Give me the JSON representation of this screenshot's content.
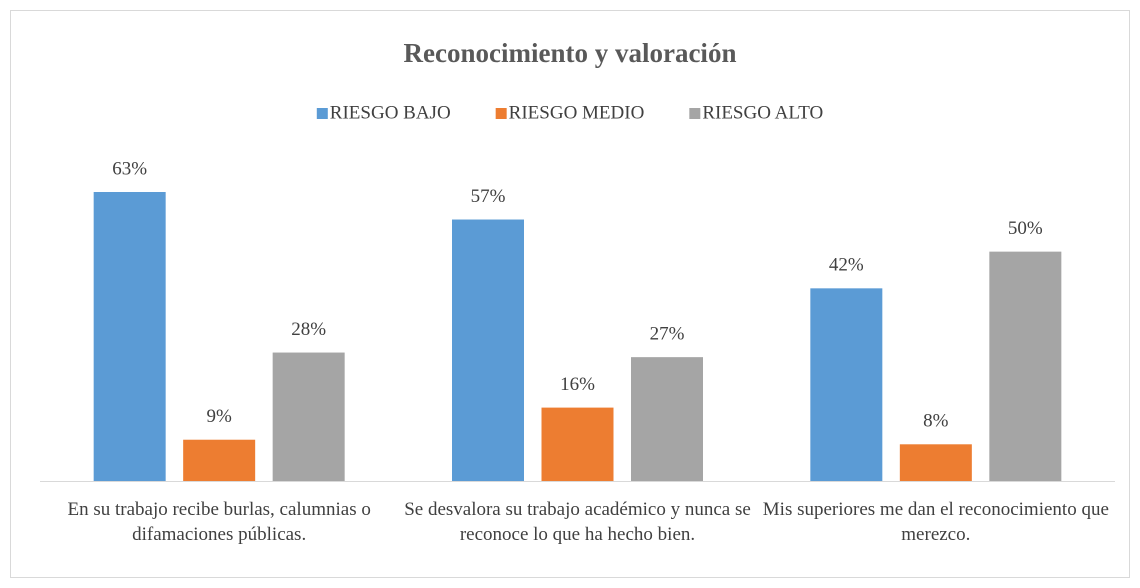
{
  "chart_data": {
    "type": "bar",
    "title": "Reconocimiento y valoración",
    "categories": [
      "En su trabajo recibe burlas, calumnias o difamaciones públicas.",
      "Se desvalora su trabajo académico y nunca se reconoce lo que ha hecho bien.",
      "Mis superiores me dan el reconocimiento que merezco."
    ],
    "series": [
      {
        "name": "RIESGO BAJO",
        "color": "#5b9bd5",
        "values": [
          63,
          57,
          42
        ],
        "value_labels": [
          "63%",
          "57%",
          "42%"
        ]
      },
      {
        "name": "RIESGO MEDIO",
        "color": "#ed7d31",
        "values": [
          9,
          16,
          8
        ],
        "value_labels": [
          "9%",
          "16%",
          "8%"
        ]
      },
      {
        "name": "RIESGO ALTO",
        "color": "#a5a5a5",
        "values": [
          28,
          27,
          50
        ],
        "value_labels": [
          "28%",
          "27%",
          "50%"
        ]
      }
    ],
    "legend": "top"
  }
}
